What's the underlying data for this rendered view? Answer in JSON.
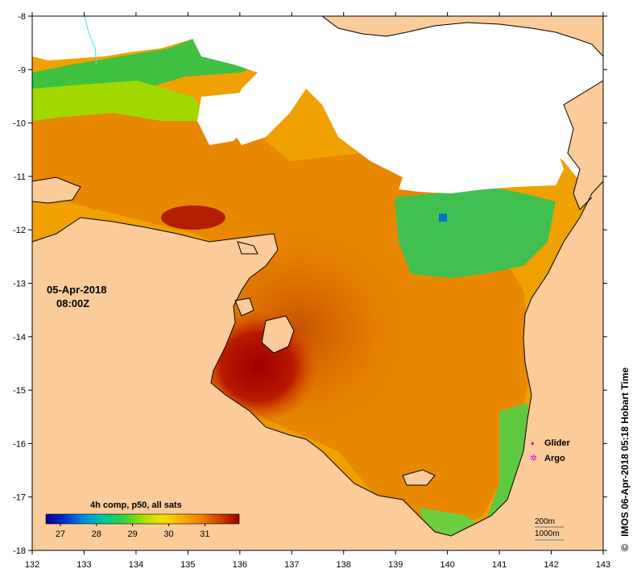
{
  "map": {
    "date": "05-Apr-2018",
    "time": "08:00Z",
    "credit": "IMOS 06-Apr-2018 05:18 Hobart Time",
    "copyright_symbol": "©",
    "x_ticks": [
      "132",
      "133",
      "134",
      "135",
      "136",
      "137",
      "138",
      "139",
      "140",
      "141",
      "142",
      "143"
    ],
    "y_ticks": [
      "-8",
      "-9",
      "-10",
      "-11",
      "-12",
      "-13",
      "-14",
      "-15",
      "-16",
      "-17",
      "-18"
    ],
    "land_color": "#fbcb9a",
    "nodata_color": "#ffffff"
  },
  "colorbar": {
    "title": "4h comp, p50, all sats",
    "ticks": [
      "27",
      "28",
      "29",
      "30",
      "31"
    ],
    "stops": [
      "#000080",
      "#0030d0",
      "#0090e0",
      "#00c8a0",
      "#30d040",
      "#a0e000",
      "#f0e000",
      "#f8b000",
      "#f08000",
      "#d04000",
      "#a00000"
    ]
  },
  "legend": {
    "items": [
      {
        "label": "Glider",
        "symbol": "♦",
        "color": "#e000e0"
      },
      {
        "label": "Argo",
        "symbol": "✲",
        "color": "#e000e0"
      }
    ]
  },
  "contours": {
    "labels": [
      "200m",
      "1000m"
    ],
    "colors": [
      "#6e6e6e",
      "#2aa0a0"
    ]
  }
}
